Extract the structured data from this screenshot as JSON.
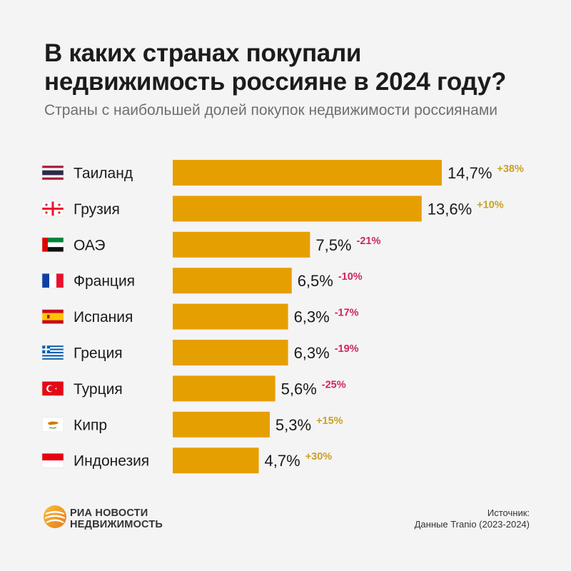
{
  "title": "В каких странах покупали недвижимость россияне в 2024 году?",
  "subtitle": "Страны с наибольшей долей покупок недвижимости россиянами",
  "colors": {
    "bar": "#e69f00",
    "positive": "#c9a227",
    "negative": "#d0255d",
    "background": "#f4f4f4"
  },
  "chart_data": {
    "type": "bar",
    "orientation": "horizontal",
    "categories": [
      "Таиланд",
      "Грузия",
      "ОАЭ",
      "Франция",
      "Испания",
      "Греция",
      "Турция",
      "Кипр",
      "Индонезия"
    ],
    "values": [
      14.7,
      13.6,
      7.5,
      6.5,
      6.3,
      6.3,
      5.6,
      5.3,
      4.7
    ],
    "value_labels": [
      "14,7%",
      "13,6%",
      "7,5%",
      "6,5%",
      "6,3%",
      "6,3%",
      "5,6%",
      "5,3%",
      "4,7%"
    ],
    "changes": [
      "+38%",
      "+10%",
      "-21%",
      "-10%",
      "-17%",
      "-19%",
      "-25%",
      "+15%",
      "+30%"
    ],
    "flags": [
      "thailand-flag",
      "georgia-flag",
      "uae-flag",
      "france-flag",
      "spain-flag",
      "greece-flag",
      "turkey-flag",
      "cyprus-flag",
      "indonesia-flag"
    ],
    "unit": "%",
    "grid": false
  },
  "footer": {
    "logo_line1": "РИА НОВОСТИ",
    "logo_line2": "НЕДВИЖИМОСТЬ",
    "source_label": "Источник:",
    "source_text": "Данные Tranio (2023-2024)"
  }
}
